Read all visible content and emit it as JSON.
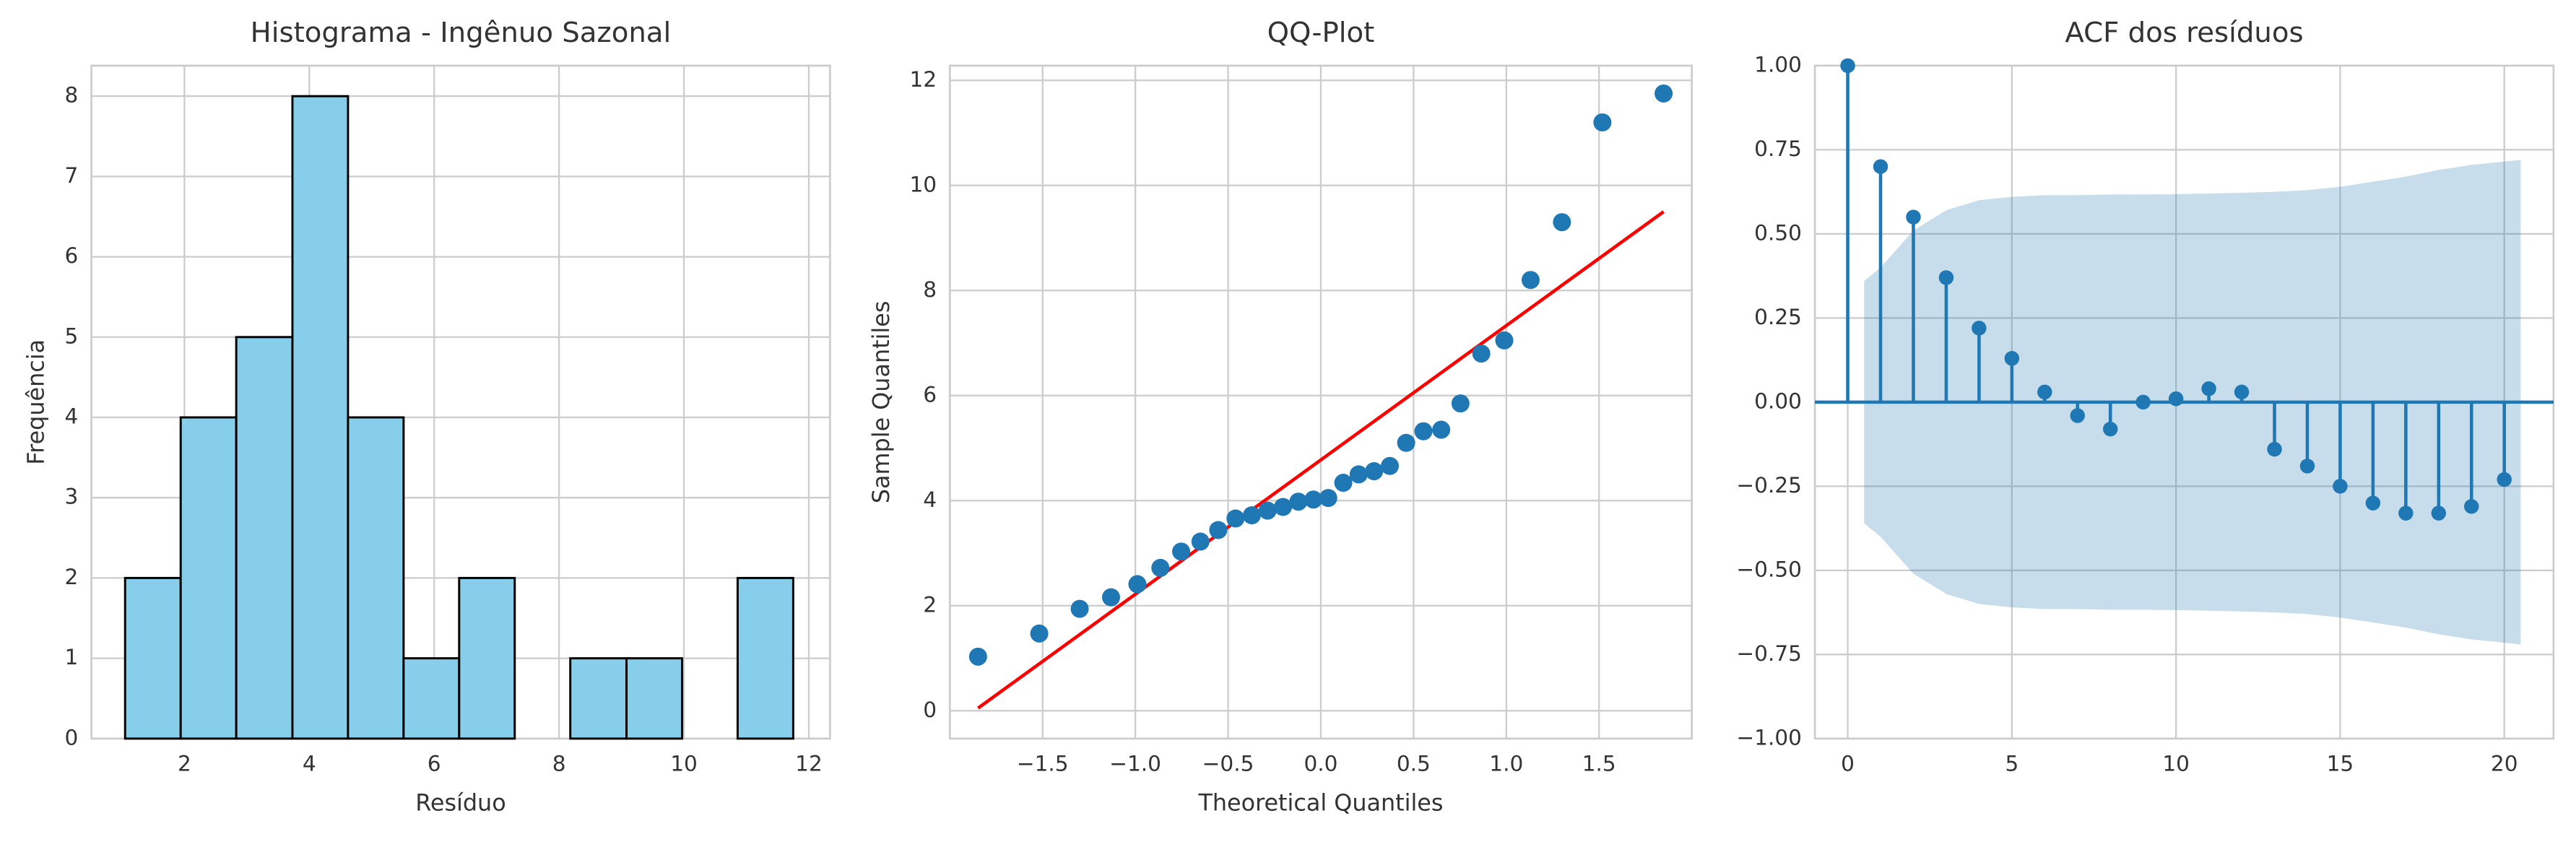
{
  "chart_data": [
    {
      "type": "histogram",
      "title": "Histograma - Ingênuo Sazonal",
      "xlabel": "Resíduo",
      "ylabel": "Frequência",
      "bins": [
        1.05,
        1.94,
        2.83,
        3.73,
        4.62,
        5.51,
        6.4,
        7.29,
        8.18,
        9.08,
        9.97,
        10.86,
        11.75
      ],
      "counts": [
        2,
        4,
        5,
        8,
        4,
        1,
        2,
        0,
        1,
        1,
        0,
        2
      ],
      "color": "#87ceeb",
      "edgecolor": "#000000",
      "xlim": [
        0.51,
        12.34
      ],
      "xticks": [
        2,
        4,
        6,
        8,
        10,
        12
      ],
      "ylim": [
        0,
        8.38
      ],
      "yticks": [
        0,
        1,
        2,
        3,
        4,
        5,
        6,
        7,
        8
      ],
      "grid": true
    },
    {
      "type": "scatter",
      "title": "QQ-Plot",
      "xlabel": "Theoretical Quantiles",
      "ylabel": "Sample Quantiles",
      "points": {
        "color": "#1f77b4",
        "x": [
          -1.848,
          -1.518,
          -1.3,
          -1.131,
          -0.989,
          -0.865,
          -0.753,
          -0.649,
          -0.553,
          -0.46,
          -0.372,
          -0.287,
          -0.204,
          -0.121,
          -0.04,
          0.04,
          0.121,
          0.204,
          0.287,
          0.372,
          0.46,
          0.553,
          0.649,
          0.753,
          0.865,
          0.989,
          1.131,
          1.3,
          1.518,
          1.848
        ],
        "y": [
          1.03,
          1.47,
          1.94,
          2.16,
          2.41,
          2.72,
          3.03,
          3.22,
          3.44,
          3.66,
          3.72,
          3.81,
          3.88,
          3.98,
          4.02,
          4.05,
          4.34,
          4.5,
          4.56,
          4.66,
          5.1,
          5.32,
          5.35,
          5.85,
          6.8,
          7.05,
          8.2,
          9.3,
          11.2,
          11.75
        ]
      },
      "line": {
        "color": "#ff0000",
        "x": [
          -1.848,
          1.848
        ],
        "y": [
          0.05,
          9.5
        ]
      },
      "xlim": [
        -2.0,
        2.0
      ],
      "xticks": [
        {
          "value": -1.5,
          "label": "−1.5"
        },
        {
          "value": -1.0,
          "label": "−1.0"
        },
        {
          "value": -0.5,
          "label": "−0.5"
        },
        {
          "value": 0,
          "label": "0.0"
        },
        {
          "value": 0.5,
          "label": "0.5"
        },
        {
          "value": 1.0,
          "label": "1.0"
        },
        {
          "value": 1.5,
          "label": "1.5"
        }
      ],
      "ylim": [
        -0.53,
        12.28
      ],
      "yticks": [
        0,
        2,
        4,
        6,
        8,
        10,
        12
      ],
      "grid": true
    },
    {
      "type": "stem",
      "title": "ACF dos resíduos",
      "color": "#1f77b4",
      "lags": [
        0,
        1,
        2,
        3,
        4,
        5,
        6,
        7,
        8,
        9,
        10,
        11,
        12,
        13,
        14,
        15,
        16,
        17,
        18,
        19,
        20
      ],
      "values": [
        1.0,
        0.7,
        0.55,
        0.37,
        0.22,
        0.13,
        0.03,
        -0.04,
        -0.08,
        0.0,
        0.01,
        0.04,
        0.03,
        -0.14,
        -0.19,
        -0.25,
        -0.3,
        -0.33,
        -0.33,
        -0.31,
        -0.23
      ],
      "band": {
        "color": "#1f77b4",
        "x": [
          0.5,
          1,
          2,
          3,
          4,
          5,
          6,
          7,
          8,
          9,
          10,
          11,
          12,
          13,
          14,
          15,
          16,
          17,
          18,
          19,
          20,
          20.5
        ],
        "upper": [
          0.36,
          0.4,
          0.51,
          0.57,
          0.6,
          0.61,
          0.615,
          0.615,
          0.617,
          0.617,
          0.618,
          0.62,
          0.622,
          0.625,
          0.63,
          0.64,
          0.655,
          0.67,
          0.69,
          0.705,
          0.715,
          0.72
        ],
        "lower": [
          -0.36,
          -0.4,
          -0.51,
          -0.57,
          -0.6,
          -0.61,
          -0.615,
          -0.615,
          -0.617,
          -0.617,
          -0.618,
          -0.62,
          -0.622,
          -0.625,
          -0.63,
          -0.64,
          -0.655,
          -0.67,
          -0.69,
          -0.705,
          -0.715,
          -0.72
        ]
      },
      "xlim": [
        -1,
        21.5
      ],
      "xticks": [
        0,
        5,
        10,
        15,
        20
      ],
      "ylim": [
        -1,
        1
      ],
      "yticks": [
        {
          "value": -1,
          "label": "−1.00"
        },
        {
          "value": -0.75,
          "label": "−0.75"
        },
        {
          "value": -0.5,
          "label": "−0.50"
        },
        {
          "value": -0.25,
          "label": "−0.25"
        },
        {
          "value": 0,
          "label": "0.00"
        },
        {
          "value": 0.25,
          "label": "0.25"
        },
        {
          "value": 0.5,
          "label": "0.50"
        },
        {
          "value": 0.75,
          "label": "0.75"
        },
        {
          "value": 1,
          "label": "1.00"
        }
      ],
      "grid": true
    }
  ]
}
